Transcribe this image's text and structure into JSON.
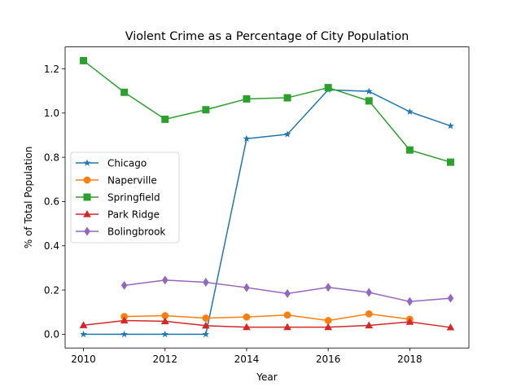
{
  "chart_data": {
    "type": "line",
    "title": "Violent Crime as a Percentage of City Population",
    "xlabel": "Year",
    "ylabel": "% of Total Population",
    "xlim": [
      2009.55,
      2019.45
    ],
    "ylim": [
      -0.062,
      1.299
    ],
    "x_ticks": [
      2010,
      2012,
      2014,
      2016,
      2018
    ],
    "y_ticks": [
      0.0,
      0.2,
      0.4,
      0.6,
      0.8,
      1.0,
      1.2
    ],
    "grid": false,
    "legend_position": "center-left",
    "series": [
      {
        "name": "Chicago",
        "color": "#1f77b4",
        "marker": "star",
        "x": [
          2010,
          2011,
          2012,
          2013,
          2014,
          2015,
          2016,
          2017,
          2018,
          2019
        ],
        "y": [
          0.0,
          0.0,
          0.0,
          0.0,
          0.884,
          0.904,
          1.105,
          1.098,
          1.006,
          0.942
        ]
      },
      {
        "name": "Naperville",
        "color": "#ff7f0e",
        "marker": "circle",
        "x": [
          2011,
          2012,
          2013,
          2014,
          2015,
          2016,
          2017,
          2018
        ],
        "y": [
          0.08,
          0.084,
          0.073,
          0.078,
          0.087,
          0.062,
          0.092,
          0.068
        ]
      },
      {
        "name": "Springfield",
        "color": "#2ca02c",
        "marker": "square",
        "x": [
          2010,
          2011,
          2012,
          2013,
          2014,
          2015,
          2016,
          2017,
          2018,
          2019
        ],
        "y": [
          1.237,
          1.094,
          0.972,
          1.015,
          1.064,
          1.069,
          1.115,
          1.055,
          0.833,
          0.778
        ]
      },
      {
        "name": "Park Ridge",
        "color": "#d62728",
        "marker": "triangle",
        "x": [
          2010,
          2011,
          2012,
          2013,
          2014,
          2015,
          2016,
          2017,
          2018,
          2019
        ],
        "y": [
          0.041,
          0.062,
          0.059,
          0.039,
          0.032,
          0.032,
          0.032,
          0.04,
          0.056,
          0.031
        ]
      },
      {
        "name": "Bolingbrook",
        "color": "#9467bd",
        "marker": "diamond",
        "x": [
          2011,
          2012,
          2013,
          2014,
          2015,
          2016,
          2017,
          2018,
          2019
        ],
        "y": [
          0.221,
          0.245,
          0.235,
          0.211,
          0.184,
          0.212,
          0.189,
          0.148,
          0.163
        ]
      }
    ]
  }
}
